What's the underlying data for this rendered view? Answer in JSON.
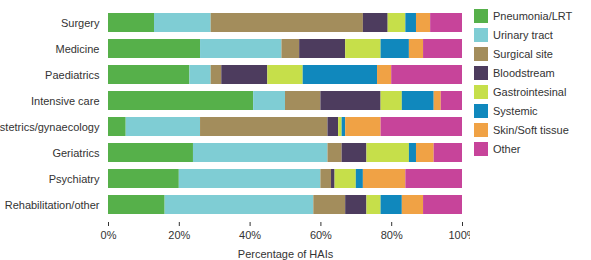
{
  "chart_data": {
    "type": "bar",
    "orientation": "horizontal",
    "stacked": true,
    "legend": "right",
    "grid": false,
    "x_label": "Percentage of HAIs",
    "xlim": [
      0,
      100
    ],
    "xticks": [
      {
        "value": 0,
        "label": "0%"
      },
      {
        "value": 20,
        "label": "20%"
      },
      {
        "value": 40,
        "label": "40%"
      },
      {
        "value": 60,
        "label": "60%"
      },
      {
        "value": 80,
        "label": "80%"
      },
      {
        "value": 100,
        "label": "100%"
      }
    ],
    "categories": [
      "Surgery",
      "Medicine",
      "Paediatrics",
      "Intensive care",
      "Obstetrics/gynaecology",
      "Geriatrics",
      "Psychiatry",
      "Rehabilitation/other"
    ],
    "series": [
      {
        "name": "Pneumonia/LRT",
        "color": "#56b04a",
        "values": [
          13,
          26,
          23,
          41,
          5,
          24,
          20,
          16
        ]
      },
      {
        "name": "Urinary tract",
        "color": "#7fcdd4",
        "values": [
          16,
          23,
          6,
          9,
          21,
          38,
          40,
          42
        ]
      },
      {
        "name": "Surgical site",
        "color": "#a38d5c",
        "values": [
          43,
          5,
          3,
          10,
          36,
          4,
          3,
          9
        ]
      },
      {
        "name": "Bloodstream",
        "color": "#4d3c5e",
        "values": [
          7,
          13,
          13,
          17,
          3,
          7,
          1,
          6
        ]
      },
      {
        "name": "Gastrointesinal",
        "color": "#c6df4a",
        "values": [
          5,
          10,
          10,
          6,
          1,
          12,
          6,
          4
        ]
      },
      {
        "name": "Systemic",
        "color": "#1088bd",
        "values": [
          3,
          8,
          21,
          9,
          1,
          2,
          2,
          6
        ]
      },
      {
        "name": "Skin/Soft tissue",
        "color": "#f0a245",
        "values": [
          4,
          4,
          4,
          2,
          10,
          5,
          12,
          6
        ]
      },
      {
        "name": "Other",
        "color": "#c7449a",
        "values": [
          9,
          11,
          20,
          6,
          23,
          8,
          16,
          11
        ]
      }
    ]
  }
}
